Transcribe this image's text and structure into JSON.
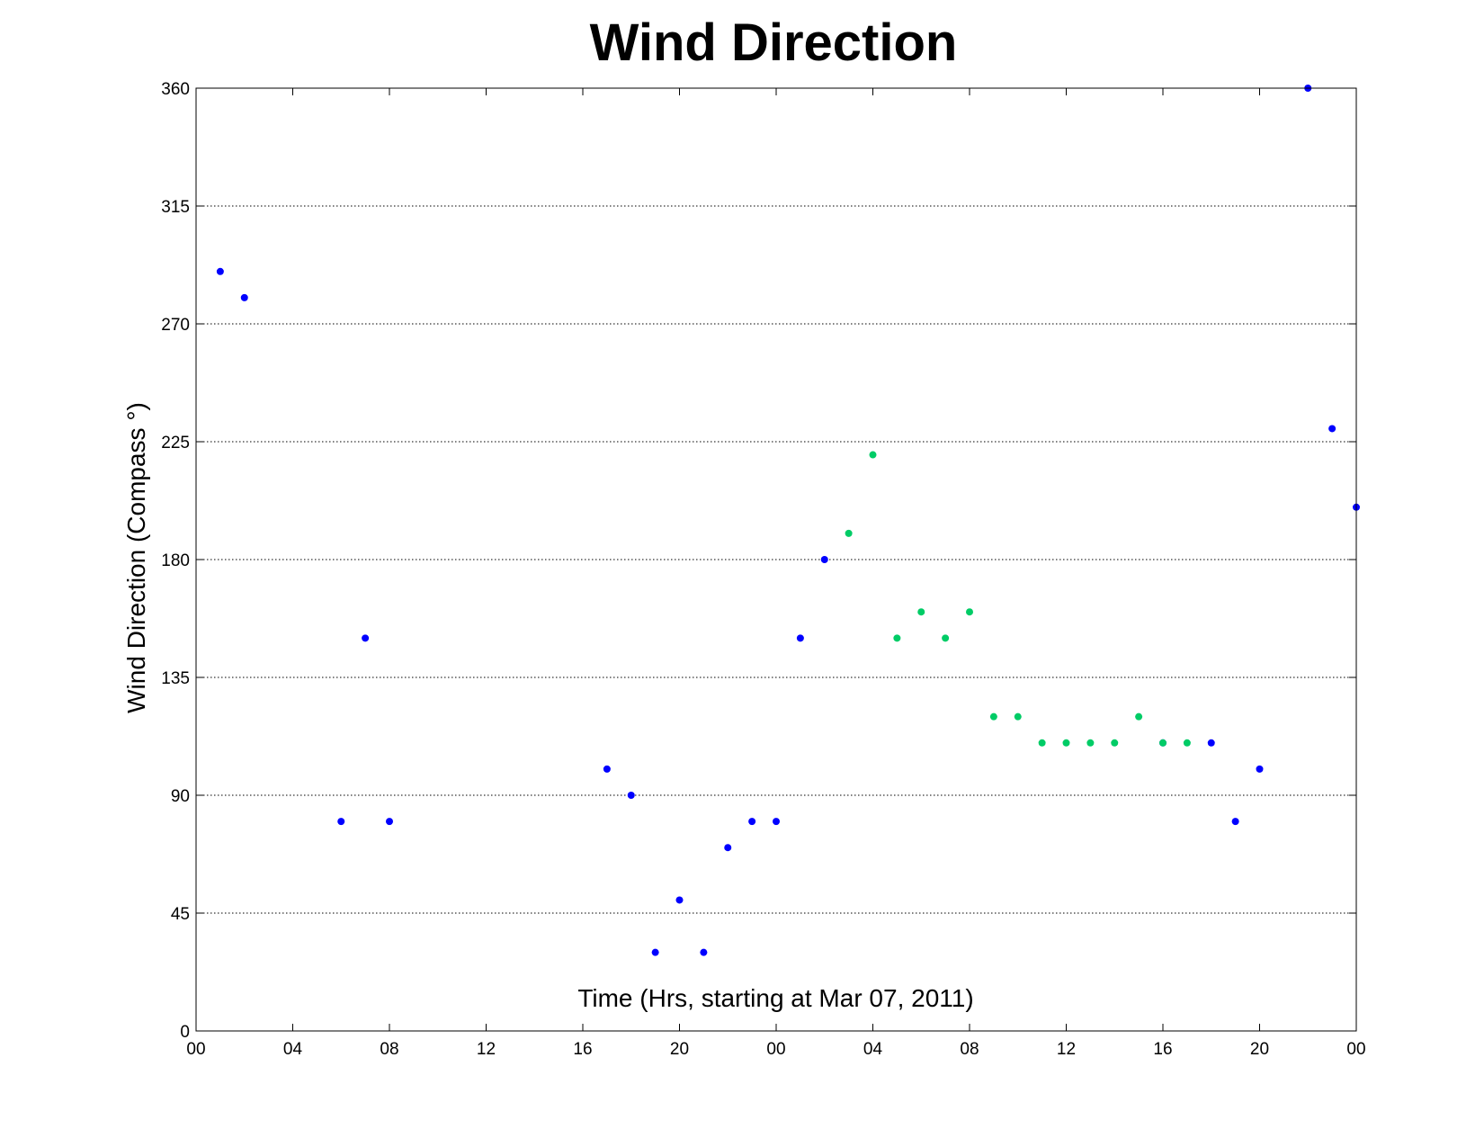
{
  "chart_data": {
    "type": "scatter",
    "title": "Wind Direction",
    "xlabel": "Time (Hrs, starting at Mar 07, 2011)",
    "ylabel": "Wind Direction (Compass  °)",
    "xlim": [
      "2011-03-07 00:00",
      "2011-03-09 00:00"
    ],
    "ylim": [
      0,
      360
    ],
    "x_ticks": [
      "00",
      "04",
      "08",
      "12",
      "16",
      "20",
      "00",
      "04",
      "08",
      "12",
      "16",
      "20",
      "00"
    ],
    "y_ticks": [
      0,
      45,
      90,
      135,
      180,
      225,
      270,
      315,
      360
    ],
    "grid": "y-dotted",
    "series": [
      {
        "color": "#0000ff",
        "points": [
          {
            "x": "2011-03-07 01:00",
            "y": 290
          },
          {
            "x": "2011-03-07 02:00",
            "y": 280
          },
          {
            "x": "2011-03-07 06:00",
            "y": 80
          },
          {
            "x": "2011-03-07 07:00",
            "y": 150
          },
          {
            "x": "2011-03-07 08:00",
            "y": 80
          },
          {
            "x": "2011-03-07 17:00",
            "y": 100
          },
          {
            "x": "2011-03-07 18:00",
            "y": 90
          },
          {
            "x": "2011-03-07 19:00",
            "y": 30
          },
          {
            "x": "2011-03-07 20:00",
            "y": 50
          },
          {
            "x": "2011-03-07 21:00",
            "y": 30
          },
          {
            "x": "2011-03-07 22:00",
            "y": 70
          },
          {
            "x": "2011-03-07 23:00",
            "y": 80
          },
          {
            "x": "2011-03-08 00:00",
            "y": 80
          },
          {
            "x": "2011-03-08 01:00",
            "y": 150
          },
          {
            "x": "2011-03-08 02:00",
            "y": 180
          },
          {
            "x": "2011-03-08 16:00",
            "y": 110
          },
          {
            "x": "2011-03-08 18:00",
            "y": 110
          },
          {
            "x": "2011-03-08 19:00",
            "y": 80
          },
          {
            "x": "2011-03-08 20:00",
            "y": 100
          },
          {
            "x": "2011-03-08 22:00",
            "y": 360
          },
          {
            "x": "2011-03-08 23:00",
            "y": 230
          },
          {
            "x": "2011-03-09 00:00",
            "y": 200
          }
        ]
      },
      {
        "color": "#00cc66",
        "points": [
          {
            "x": "2011-03-08 03:00",
            "y": 190
          },
          {
            "x": "2011-03-08 04:00",
            "y": 220
          },
          {
            "x": "2011-03-08 05:00",
            "y": 150
          },
          {
            "x": "2011-03-08 06:00",
            "y": 160
          },
          {
            "x": "2011-03-08 07:00",
            "y": 150
          },
          {
            "x": "2011-03-08 08:00",
            "y": 160
          },
          {
            "x": "2011-03-08 09:00",
            "y": 120
          },
          {
            "x": "2011-03-08 10:00",
            "y": 120
          },
          {
            "x": "2011-03-08 11:00",
            "y": 110
          },
          {
            "x": "2011-03-08 12:00",
            "y": 110
          },
          {
            "x": "2011-03-08 13:00",
            "y": 110
          },
          {
            "x": "2011-03-08 14:00",
            "y": 110
          },
          {
            "x": "2011-03-08 15:00",
            "y": 120
          },
          {
            "x": "2011-03-08 16:00",
            "y": 110
          },
          {
            "x": "2011-03-08 17:00",
            "y": 110
          }
        ]
      }
    ]
  }
}
